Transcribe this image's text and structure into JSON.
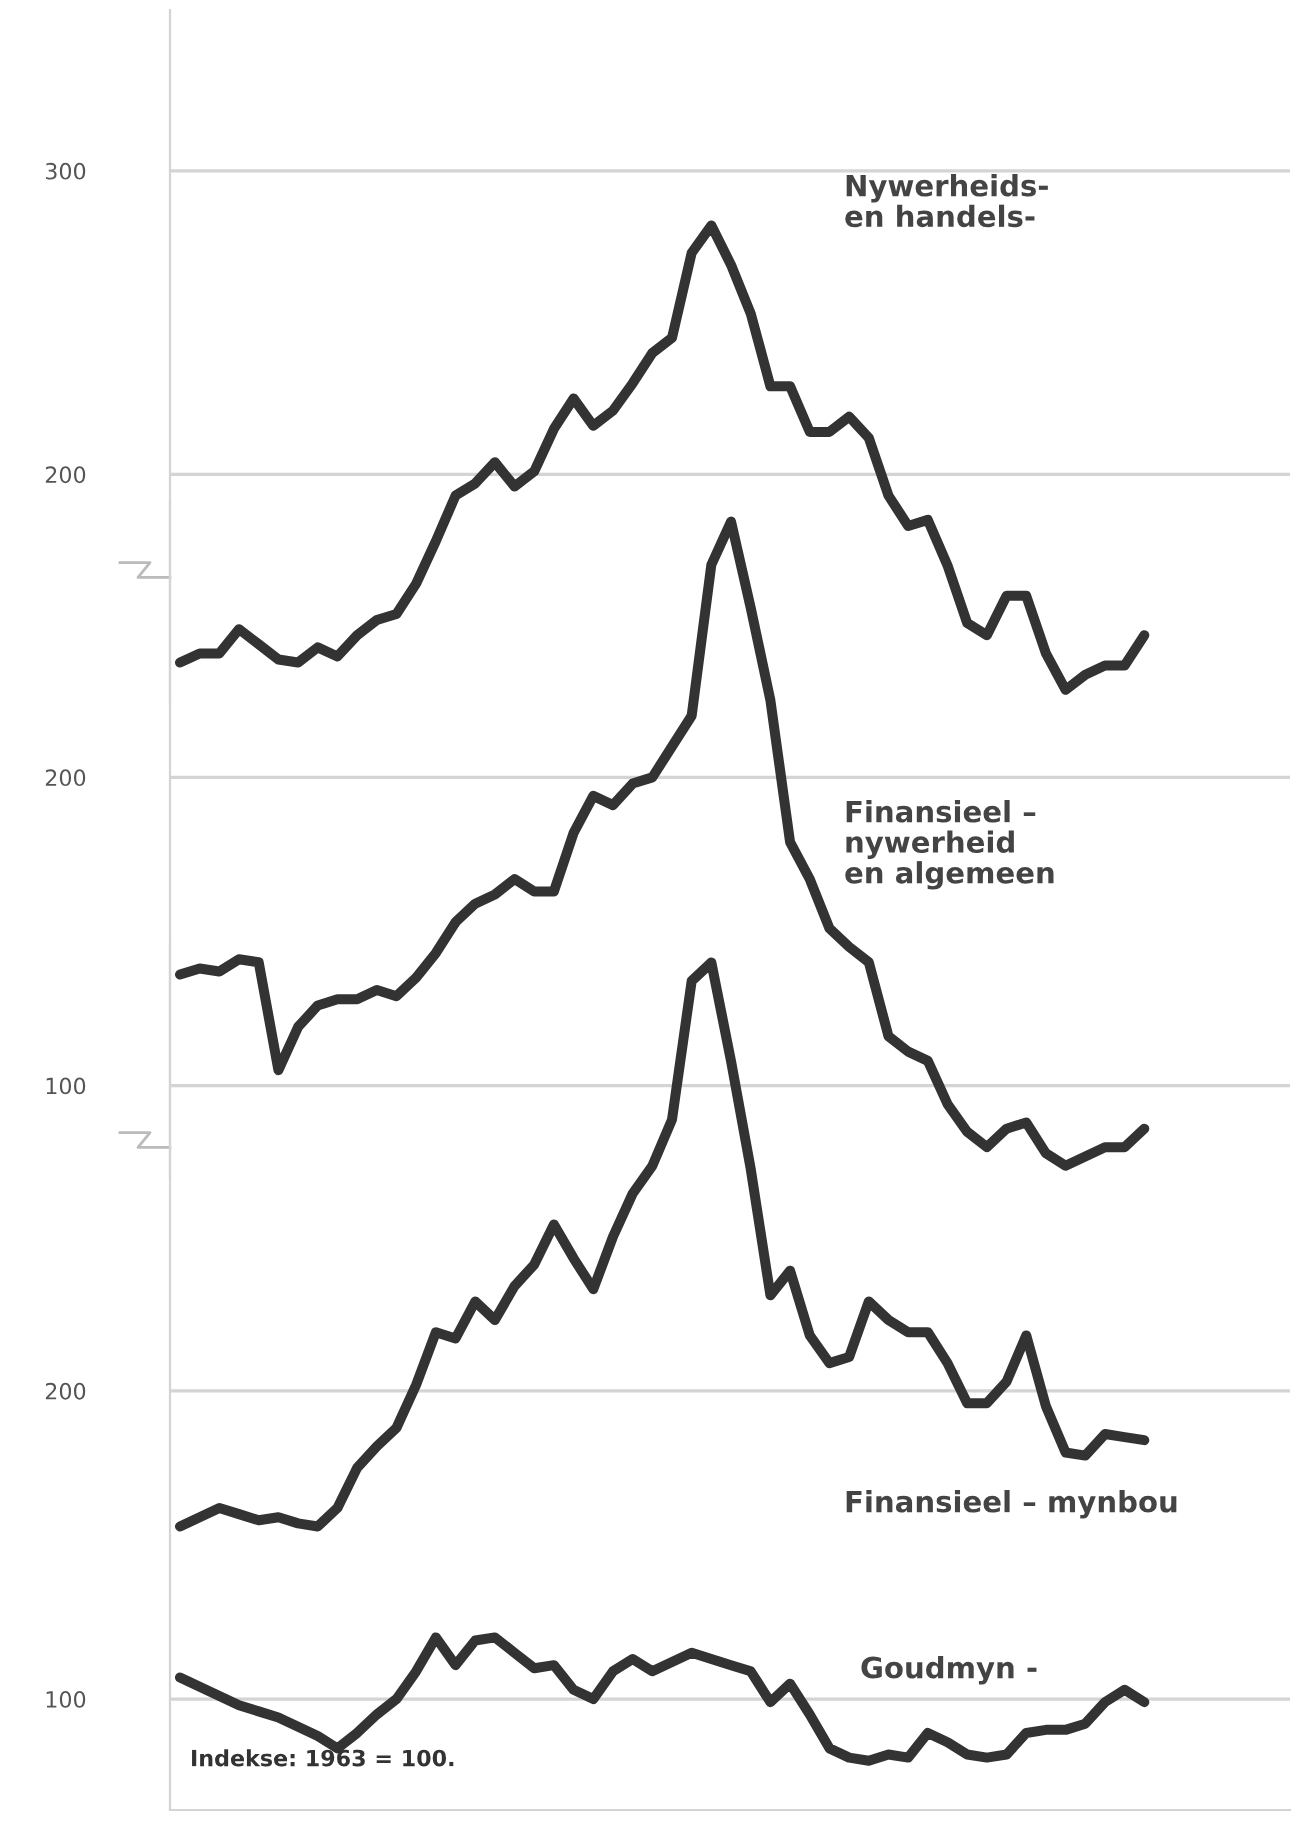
{
  "chart_data": [
    {
      "type": "line",
      "categories": [
        null,
        null,
        null,
        null,
        null,
        null,
        null,
        null,
        null,
        null,
        null,
        null,
        null,
        null,
        null,
        null,
        null,
        null,
        null,
        null,
        null,
        null,
        null,
        null,
        null,
        null,
        null,
        null,
        null,
        null,
        null,
        null,
        null,
        null,
        null,
        null,
        null,
        null,
        null,
        null,
        null,
        null,
        null,
        null,
        null,
        null,
        null,
        null,
        null,
        null
      ],
      "ylim": [
        125,
        353
      ],
      "yticks": [
        200,
        300
      ],
      "tick_labels": "y",
      "grid": "y",
      "series": [
        {
          "name": "Nywerheids-\nen handels-",
          "color": "#333333",
          "values": [
            138,
            141,
            141,
            149,
            144,
            139,
            138,
            143,
            140,
            147,
            152,
            154,
            164,
            178,
            193,
            197,
            204,
            196,
            201,
            215,
            225,
            216,
            221,
            230,
            240,
            245,
            273,
            282,
            269,
            253,
            229,
            229,
            214,
            214,
            219,
            212,
            193,
            183,
            185,
            170,
            151,
            147,
            160,
            160,
            141,
            129,
            134,
            137,
            137,
            147
          ]
        }
      ]
    },
    {
      "type": "line",
      "categories": [
        null,
        null,
        null,
        null,
        null,
        null,
        null,
        null,
        null,
        null,
        null,
        null,
        null,
        null,
        null,
        null,
        null,
        null,
        null,
        null,
        null,
        null,
        null,
        null,
        null,
        null,
        null,
        null,
        null,
        null,
        null,
        null,
        null,
        null,
        null,
        null,
        null,
        null,
        null,
        null,
        null,
        null,
        null,
        null,
        null,
        null,
        null,
        null,
        null,
        null
      ],
      "ylim": [
        70,
        290
      ],
      "yticks": [
        100,
        200
      ],
      "tick_labels": "y",
      "grid": "y",
      "series": [
        {
          "name": "Finansieel –\nnywerheid\nen algemeen",
          "color": "#333333",
          "values": [
            136,
            138,
            137,
            141,
            140,
            105,
            119,
            126,
            128,
            128,
            131,
            129,
            135,
            143,
            153,
            159,
            162,
            167,
            163,
            163,
            182,
            194,
            191,
            198,
            200,
            210,
            220,
            269,
            283,
            255,
            225,
            179,
            167,
            151,
            145,
            140,
            116,
            111,
            108,
            94,
            85,
            80,
            86,
            88,
            78,
            74,
            77,
            80,
            80,
            86
          ]
        }
      ]
    },
    {
      "type": "line",
      "categories": [
        null,
        null,
        null,
        null,
        null,
        null,
        null,
        null,
        null,
        null,
        null,
        null,
        null,
        null,
        null,
        null,
        null,
        null,
        null,
        null,
        null,
        null,
        null,
        null,
        null,
        null,
        null,
        null,
        null,
        null,
        null,
        null,
        null,
        null,
        null,
        null,
        null,
        null,
        null,
        null,
        null,
        null,
        null,
        null,
        null,
        null,
        null,
        null,
        null,
        null
      ],
      "ylim": [
        64,
        345
      ],
      "yticks": [
        100,
        200
      ],
      "tick_labels": "y",
      "grid": "y",
      "annotations": [
        "Indekse: 1963 = 100."
      ],
      "series": [
        {
          "name": "Finansieel – mynbou",
          "color": "#333333",
          "values": [
            156,
            159,
            162,
            160,
            158,
            159,
            157,
            156,
            162,
            175,
            182,
            188,
            202,
            219,
            217,
            229,
            223,
            234,
            241,
            254,
            243,
            233,
            250,
            264,
            273,
            288,
            333,
            339,
            307,
            272,
            231,
            239,
            218,
            209,
            211,
            229,
            223,
            219,
            219,
            209,
            196,
            196,
            203,
            218,
            195,
            180,
            179,
            186,
            185,
            184
          ]
        },
        {
          "name": "Goudmyn -",
          "color": "#333333",
          "values": [
            107,
            104,
            101,
            98,
            96,
            94,
            91,
            88,
            84,
            89,
            95,
            100,
            109,
            120,
            111,
            119,
            120,
            115,
            110,
            111,
            103,
            100,
            109,
            113,
            109,
            112,
            115,
            113,
            111,
            109,
            99,
            105,
            95,
            84,
            81,
            80,
            82,
            81,
            89,
            86,
            82,
            81,
            82,
            89,
            90,
            90,
            92,
            99,
            103,
            99
          ]
        }
      ]
    }
  ]
}
